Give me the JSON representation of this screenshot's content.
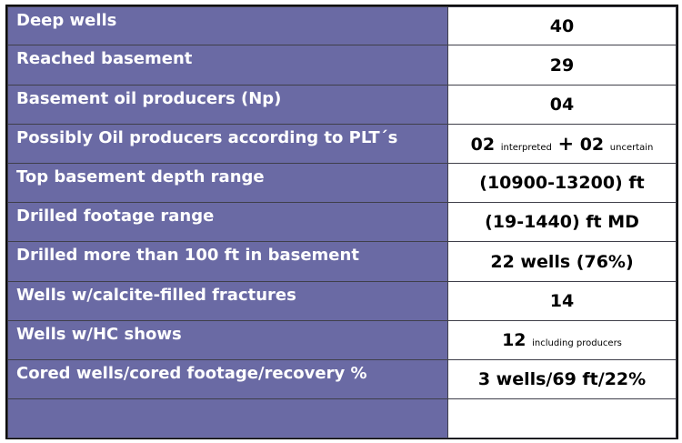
{
  "rows": [
    {
      "label": "Deep wells",
      "value": "40"
    },
    {
      "label": "Reached basement",
      "value": "29"
    },
    {
      "label": "Basement oil producers (Np)",
      "value": "04"
    },
    {
      "label": "Possibly Oil producers according to PLT´s",
      "value_parts": {
        "a": "02",
        "a_note": "interpreted",
        "plus": "+",
        "b": "02",
        "b_note": "uncertain"
      }
    },
    {
      "label": "Top basement depth range",
      "value": "(10900-13200) ft"
    },
    {
      "label": "Drilled footage range",
      "value": "(19-1440) ft MD"
    },
    {
      "label": "Drilled more than 100 ft in basement",
      "value": "22 wells (76%)"
    },
    {
      "label": "Wells w/calcite-filled fractures",
      "value": "14"
    },
    {
      "label": "Wells w/HC shows",
      "value_parts": {
        "main": "12",
        "note": "including producers"
      }
    },
    {
      "label": "Cored wells/cored footage/recovery %",
      "value": "3 wells/69 ft/22%"
    },
    {
      "label": "",
      "value": ""
    }
  ],
  "colors": {
    "label_bg": "#6a6aa4",
    "label_text": "#ffffff",
    "value_bg": "#ffffff",
    "border": "#3f3f4a"
  }
}
